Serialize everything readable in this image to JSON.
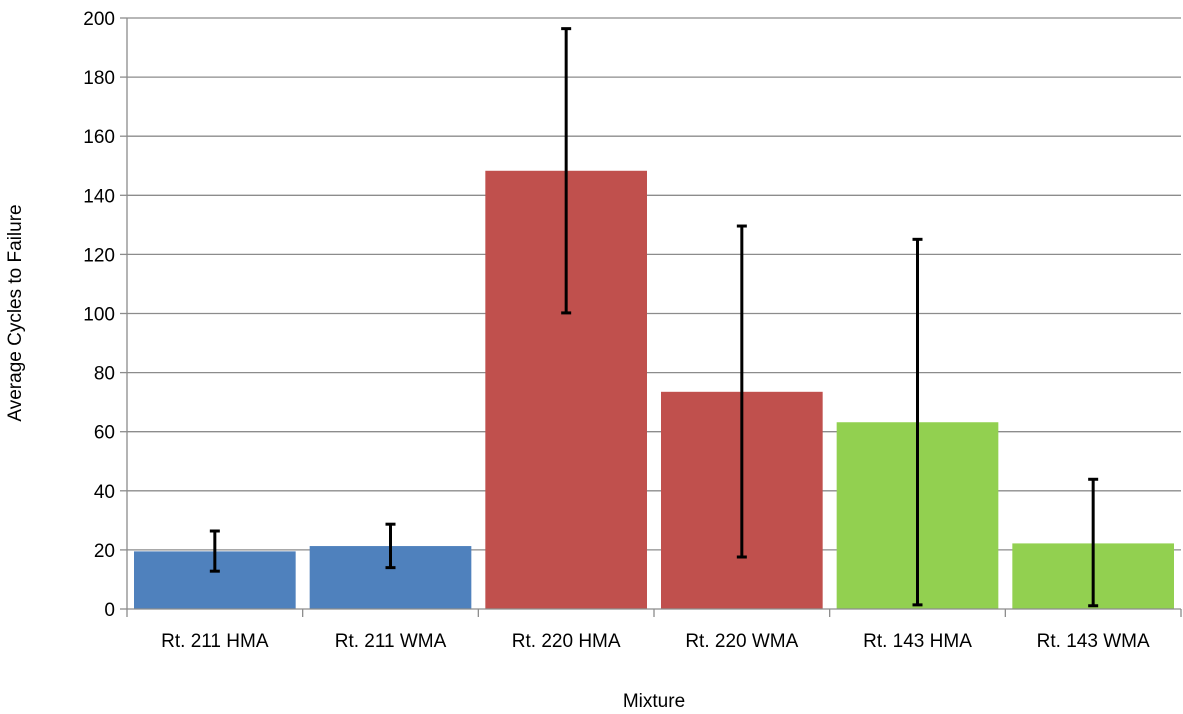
{
  "chart_data": {
    "type": "bar",
    "title": "",
    "xlabel": "Mixture",
    "ylabel": "Average Cycles to Failure",
    "ylim": [
      0,
      200
    ],
    "yticks": [
      0,
      20,
      40,
      60,
      80,
      100,
      120,
      140,
      160,
      180,
      200
    ],
    "grid": true,
    "legend": "none",
    "categories": [
      "Rt. 211 HMA",
      "Rt. 211 WMA",
      "Rt. 220 HMA",
      "Rt. 220 WMA",
      "Rt. 143 HMA",
      "Rt. 143 WMA"
    ],
    "values": [
      19.5,
      21.3,
      148.3,
      73.5,
      63.2,
      22.2
    ],
    "error_low": [
      12.8,
      14,
      100.2,
      17.6,
      1.4,
      1.1
    ],
    "error_high": [
      26.4,
      28.7,
      196.4,
      129.6,
      125.1,
      43.9
    ],
    "bar_colors": [
      "#4F81BD",
      "#4F81BD",
      "#C0504D",
      "#C0504D",
      "#92D050",
      "#92D050"
    ],
    "grid_color": "#8C8C8C",
    "axis_color": "#8C8C8C",
    "error_bar_color": "#000000"
  }
}
